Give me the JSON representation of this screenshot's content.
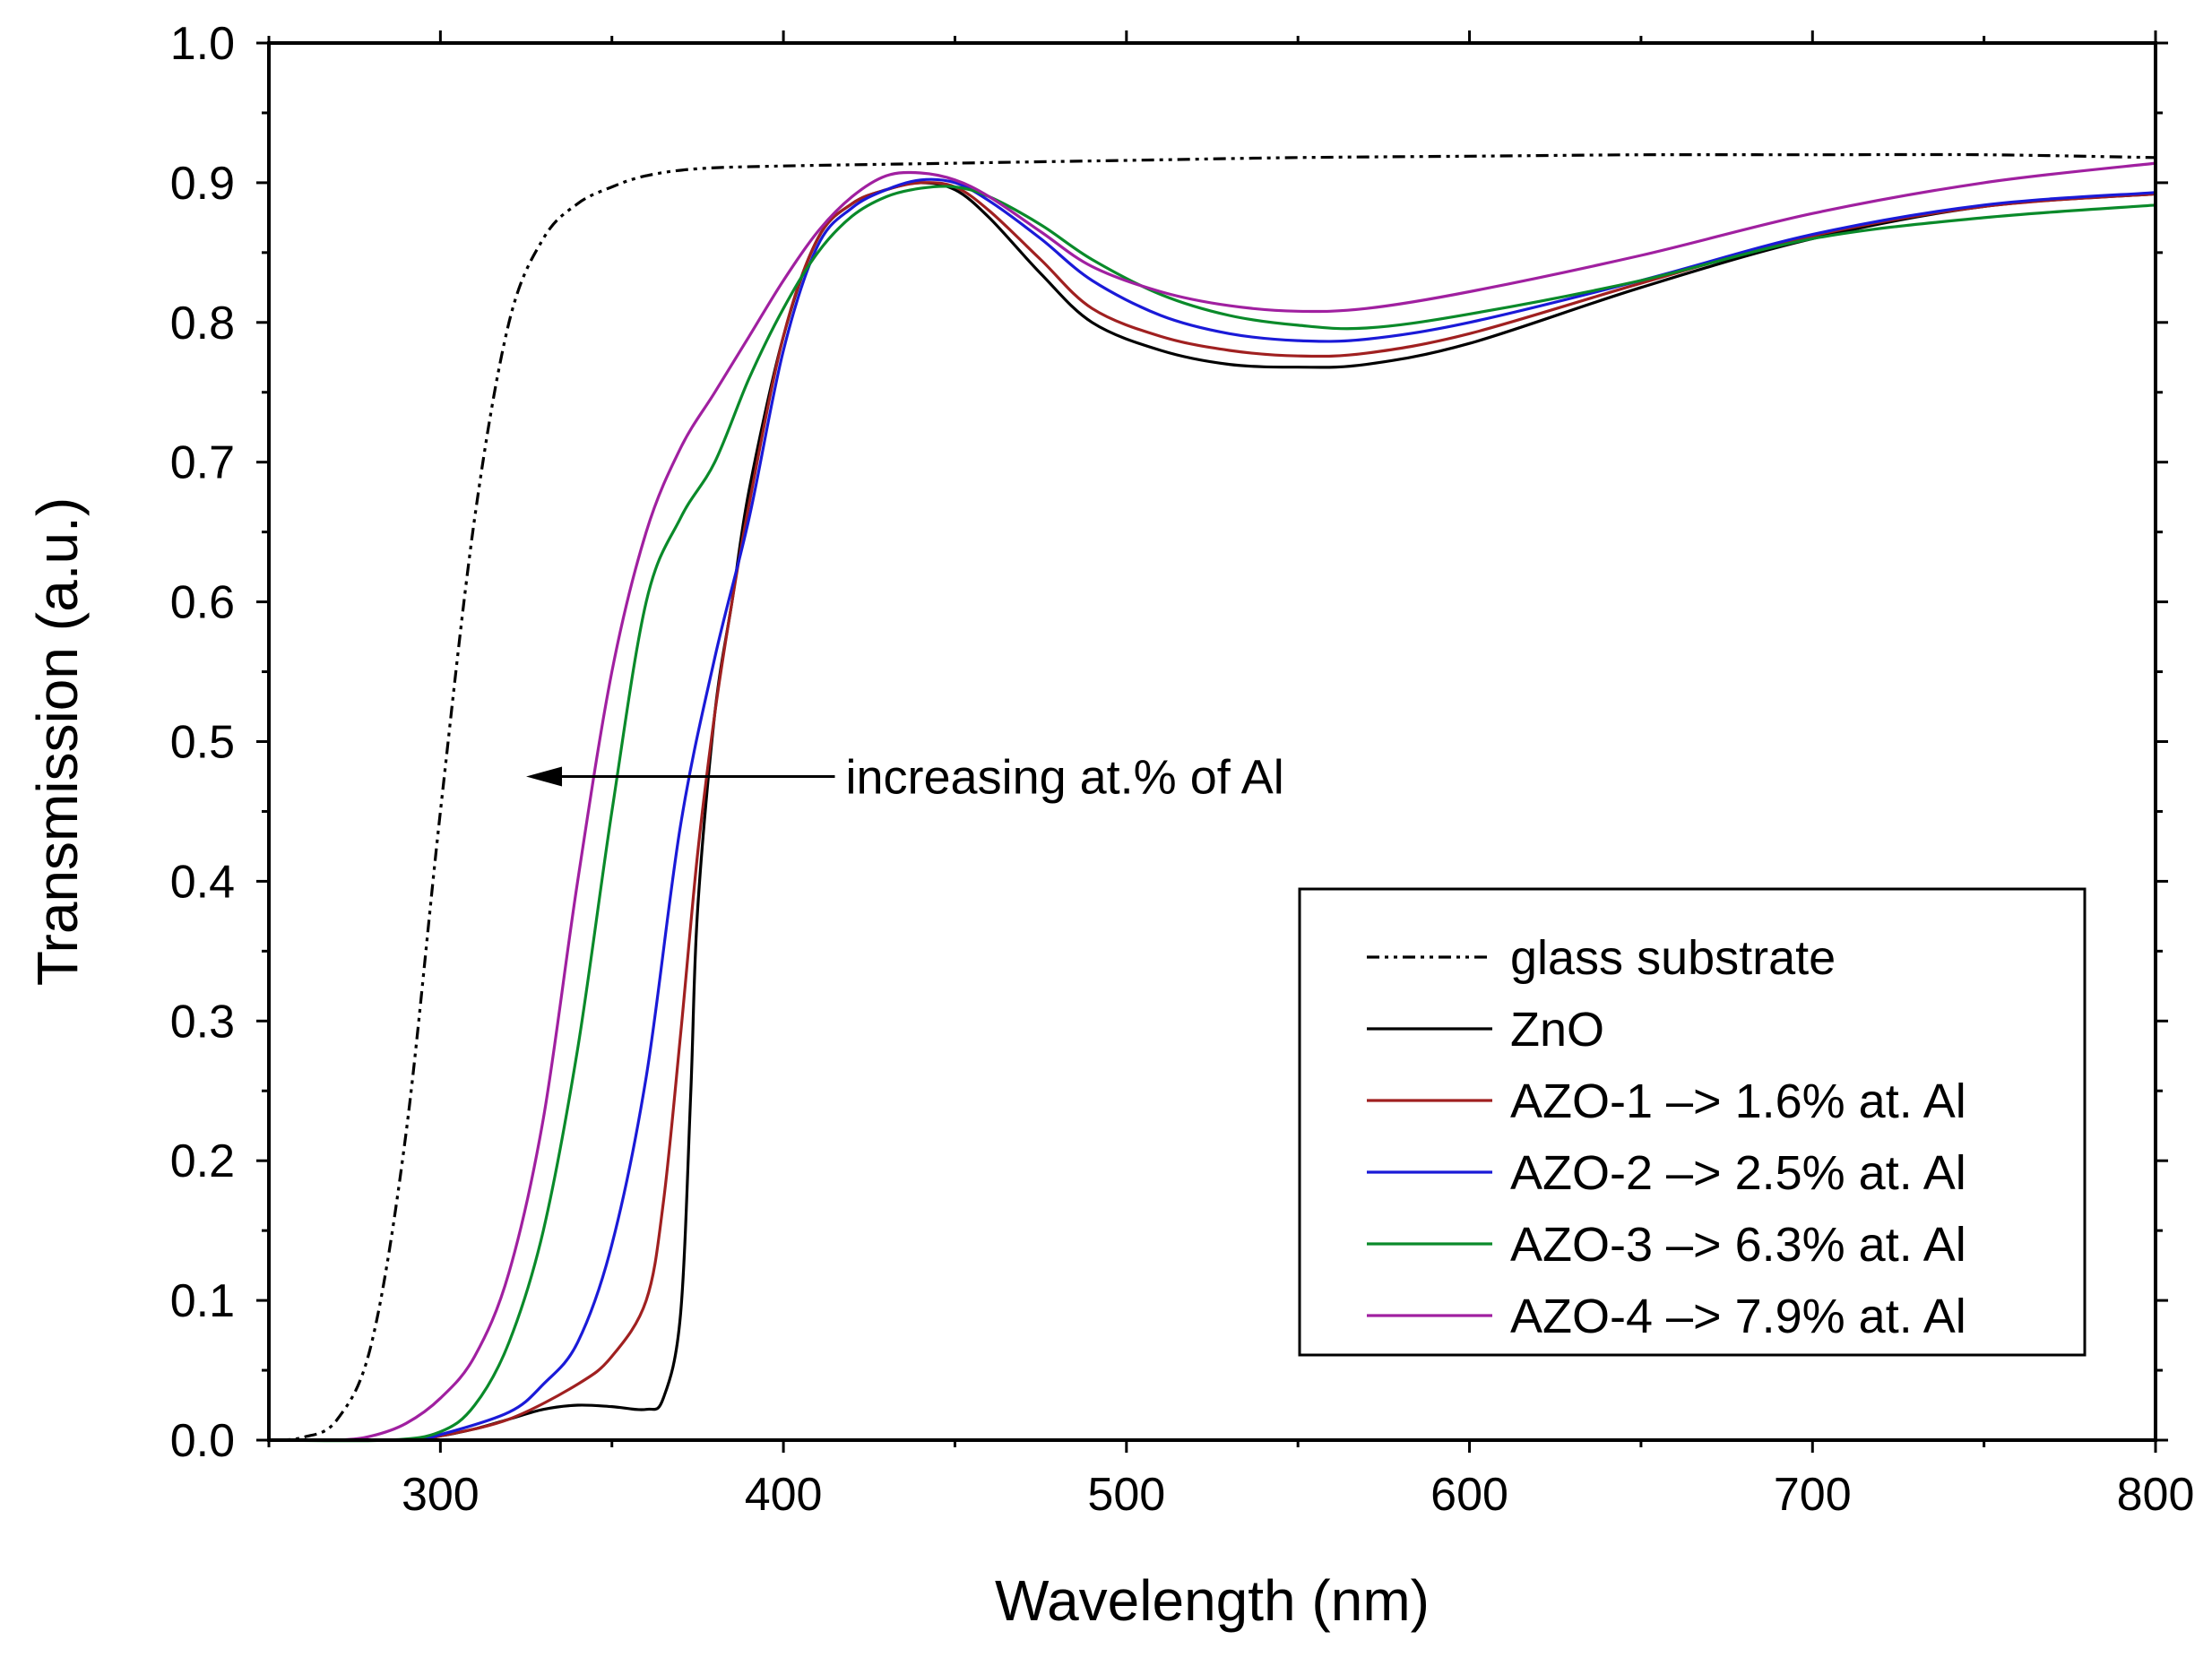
{
  "chart_data": {
    "type": "line",
    "title": "",
    "xlabel": "Wavelength (nm)",
    "ylabel": "Transmission (a.u.)",
    "xlim": [
      250,
      800
    ],
    "ylim": [
      0.0,
      1.0
    ],
    "grid": false,
    "legend_position": "lower-right",
    "x_ticks": [
      300,
      400,
      500,
      600,
      700,
      800
    ],
    "x_tick_labels": [
      "300",
      "400",
      "500",
      "600",
      "700",
      "800"
    ],
    "y_ticks": [
      0.0,
      0.1,
      0.2,
      0.3,
      0.4,
      0.5,
      0.6,
      0.7,
      0.8,
      0.9,
      1.0
    ],
    "y_tick_labels": [
      "0.0",
      "0.1",
      "0.2",
      "0.3",
      "0.4",
      "0.5",
      "0.6",
      "0.7",
      "0.8",
      "0.9",
      "1.0"
    ],
    "annotation": {
      "text": "increasing at.% of Al",
      "arrow_from_x": 415,
      "arrow_to_x": 325,
      "y": 0.475
    },
    "series": [
      {
        "name": "glass substrate",
        "legend_label": "glass substrate",
        "color": "#000000",
        "dash": "dashdotdot",
        "points": [
          [
            250,
            0
          ],
          [
            260,
            0.002
          ],
          [
            270,
            0.015
          ],
          [
            280,
            0.07
          ],
          [
            290,
            0.22
          ],
          [
            300,
            0.45
          ],
          [
            310,
            0.66
          ],
          [
            320,
            0.8
          ],
          [
            330,
            0.86
          ],
          [
            340,
            0.885
          ],
          [
            350,
            0.897
          ],
          [
            360,
            0.905
          ],
          [
            375,
            0.91
          ],
          [
            400,
            0.912
          ],
          [
            450,
            0.914
          ],
          [
            500,
            0.916
          ],
          [
            550,
            0.918
          ],
          [
            600,
            0.919
          ],
          [
            650,
            0.92
          ],
          [
            700,
            0.92
          ],
          [
            750,
            0.92
          ],
          [
            800,
            0.918
          ]
        ]
      },
      {
        "name": "ZnO",
        "legend_label": "ZnO",
        "color": "#000000",
        "dash": "solid",
        "points": [
          [
            250,
            0
          ],
          [
            290,
            0
          ],
          [
            300,
            0.003
          ],
          [
            310,
            0.008
          ],
          [
            320,
            0.015
          ],
          [
            330,
            0.022
          ],
          [
            340,
            0.025
          ],
          [
            350,
            0.024
          ],
          [
            360,
            0.022
          ],
          [
            365,
            0.03
          ],
          [
            370,
            0.09
          ],
          [
            373,
            0.25
          ],
          [
            375,
            0.38
          ],
          [
            380,
            0.52
          ],
          [
            385,
            0.6
          ],
          [
            390,
            0.68
          ],
          [
            400,
            0.79
          ],
          [
            410,
            0.86
          ],
          [
            420,
            0.885
          ],
          [
            430,
            0.895
          ],
          [
            440,
            0.9
          ],
          [
            450,
            0.895
          ],
          [
            460,
            0.875
          ],
          [
            475,
            0.835
          ],
          [
            490,
            0.8
          ],
          [
            510,
            0.78
          ],
          [
            530,
            0.77
          ],
          [
            550,
            0.768
          ],
          [
            570,
            0.77
          ],
          [
            600,
            0.785
          ],
          [
            650,
            0.825
          ],
          [
            700,
            0.86
          ],
          [
            750,
            0.883
          ],
          [
            800,
            0.892
          ]
        ]
      },
      {
        "name": "AZO-1",
        "legend_label": "AZO-1 –> 1.6% at. Al",
        "color": "#a02020",
        "dash": "solid",
        "points": [
          [
            250,
            0
          ],
          [
            290,
            0
          ],
          [
            300,
            0.003
          ],
          [
            320,
            0.015
          ],
          [
            340,
            0.04
          ],
          [
            350,
            0.06
          ],
          [
            360,
            0.1
          ],
          [
            365,
            0.17
          ],
          [
            370,
            0.29
          ],
          [
            375,
            0.42
          ],
          [
            380,
            0.52
          ],
          [
            385,
            0.6
          ],
          [
            390,
            0.67
          ],
          [
            400,
            0.79
          ],
          [
            410,
            0.86
          ],
          [
            420,
            0.885
          ],
          [
            430,
            0.895
          ],
          [
            440,
            0.9
          ],
          [
            450,
            0.897
          ],
          [
            460,
            0.88
          ],
          [
            475,
            0.845
          ],
          [
            490,
            0.81
          ],
          [
            510,
            0.79
          ],
          [
            530,
            0.78
          ],
          [
            550,
            0.776
          ],
          [
            570,
            0.778
          ],
          [
            600,
            0.792
          ],
          [
            650,
            0.828
          ],
          [
            700,
            0.862
          ],
          [
            750,
            0.883
          ],
          [
            800,
            0.892
          ]
        ]
      },
      {
        "name": "AZO-2",
        "legend_label": "AZO-2 –> 2.5% at. Al",
        "color": "#1a1ad8",
        "dash": "solid",
        "points": [
          [
            250,
            0
          ],
          [
            290,
            0
          ],
          [
            300,
            0.004
          ],
          [
            320,
            0.02
          ],
          [
            330,
            0.04
          ],
          [
            340,
            0.07
          ],
          [
            350,
            0.14
          ],
          [
            360,
            0.26
          ],
          [
            370,
            0.44
          ],
          [
            380,
            0.56
          ],
          [
            390,
            0.66
          ],
          [
            400,
            0.78
          ],
          [
            410,
            0.855
          ],
          [
            420,
            0.882
          ],
          [
            430,
            0.895
          ],
          [
            440,
            0.902
          ],
          [
            450,
            0.9
          ],
          [
            460,
            0.887
          ],
          [
            475,
            0.86
          ],
          [
            490,
            0.83
          ],
          [
            510,
            0.805
          ],
          [
            530,
            0.792
          ],
          [
            550,
            0.787
          ],
          [
            570,
            0.788
          ],
          [
            600,
            0.8
          ],
          [
            650,
            0.83
          ],
          [
            700,
            0.863
          ],
          [
            750,
            0.884
          ],
          [
            800,
            0.893
          ]
        ]
      },
      {
        "name": "AZO-3",
        "legend_label": "AZO-3 –> 6.3% at. Al",
        "color": "#0a8a2a",
        "dash": "solid",
        "points": [
          [
            250,
            0
          ],
          [
            285,
            0
          ],
          [
            300,
            0.006
          ],
          [
            310,
            0.025
          ],
          [
            320,
            0.07
          ],
          [
            330,
            0.15
          ],
          [
            340,
            0.28
          ],
          [
            350,
            0.45
          ],
          [
            360,
            0.6
          ],
          [
            370,
            0.66
          ],
          [
            380,
            0.7
          ],
          [
            390,
            0.76
          ],
          [
            400,
            0.81
          ],
          [
            410,
            0.85
          ],
          [
            420,
            0.876
          ],
          [
            430,
            0.89
          ],
          [
            440,
            0.896
          ],
          [
            450,
            0.897
          ],
          [
            460,
            0.89
          ],
          [
            475,
            0.87
          ],
          [
            490,
            0.845
          ],
          [
            510,
            0.82
          ],
          [
            530,
            0.805
          ],
          [
            550,
            0.798
          ],
          [
            570,
            0.796
          ],
          [
            600,
            0.806
          ],
          [
            650,
            0.83
          ],
          [
            700,
            0.86
          ],
          [
            750,
            0.875
          ],
          [
            800,
            0.884
          ]
        ]
      },
      {
        "name": "AZO-4",
        "legend_label": "AZO-4 –> 7.9% at. Al",
        "color": "#a020a0",
        "dash": "solid",
        "points": [
          [
            250,
            0
          ],
          [
            270,
            0
          ],
          [
            280,
            0.003
          ],
          [
            290,
            0.012
          ],
          [
            300,
            0.03
          ],
          [
            310,
            0.06
          ],
          [
            320,
            0.12
          ],
          [
            330,
            0.23
          ],
          [
            340,
            0.4
          ],
          [
            350,
            0.55
          ],
          [
            360,
            0.65
          ],
          [
            370,
            0.71
          ],
          [
            380,
            0.75
          ],
          [
            390,
            0.79
          ],
          [
            400,
            0.83
          ],
          [
            410,
            0.865
          ],
          [
            420,
            0.89
          ],
          [
            430,
            0.905
          ],
          [
            440,
            0.907
          ],
          [
            450,
            0.902
          ],
          [
            460,
            0.89
          ],
          [
            475,
            0.865
          ],
          [
            490,
            0.84
          ],
          [
            510,
            0.822
          ],
          [
            530,
            0.812
          ],
          [
            550,
            0.808
          ],
          [
            570,
            0.81
          ],
          [
            600,
            0.822
          ],
          [
            650,
            0.848
          ],
          [
            700,
            0.878
          ],
          [
            750,
            0.9
          ],
          [
            800,
            0.914
          ]
        ]
      }
    ]
  }
}
